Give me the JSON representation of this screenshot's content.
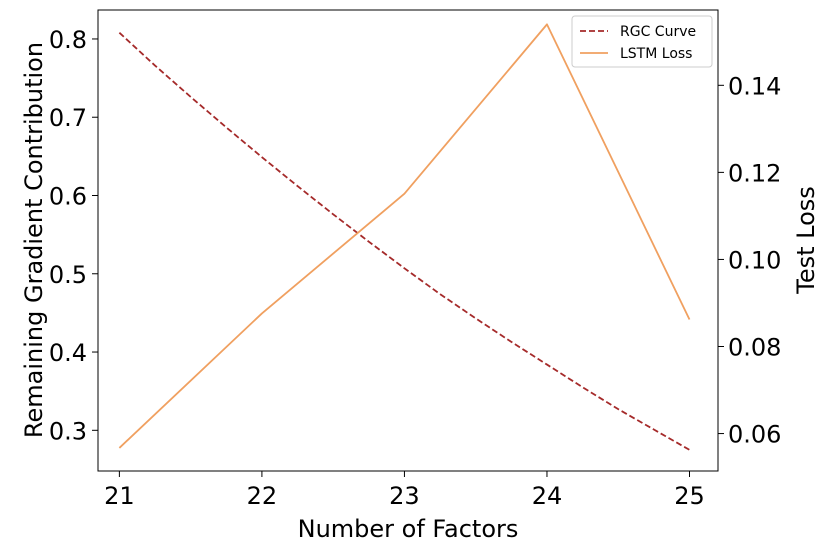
{
  "chart_data": {
    "type": "line",
    "x": [
      21,
      22,
      23,
      24,
      25
    ],
    "xlabel": "Number of Factors",
    "ylabel_left": "Remaining Gradient Contribution",
    "ylabel_right": "Test Loss",
    "xlim": [
      20.85,
      25.2
    ],
    "ylim_left": [
      0.248,
      0.837
    ],
    "ylim_right": [
      0.0514,
      0.1573
    ],
    "xticks": [
      21,
      22,
      23,
      24,
      25
    ],
    "xtick_labels": [
      "21",
      "22",
      "23",
      "24",
      "25"
    ],
    "yticks_left": [
      0.3,
      0.4,
      0.5,
      0.6,
      0.7,
      0.8
    ],
    "ytick_labels_left": [
      "0.3",
      "0.4",
      "0.5",
      "0.6",
      "0.7",
      "0.8"
    ],
    "yticks_right": [
      0.06,
      0.08,
      0.1,
      0.12,
      0.14
    ],
    "ytick_labels_right": [
      "0.06",
      "0.08",
      "0.10",
      "0.12",
      "0.14"
    ],
    "grid": false,
    "legend_position": "top-right",
    "series": [
      {
        "name": "RGC Curve",
        "axis": "left",
        "style": "dashed",
        "color": "#a52a2a",
        "x": [
          21,
          21.25,
          21.5,
          21.75,
          22,
          22.25,
          22.5,
          22.75,
          23,
          23.25,
          23.5,
          23.75,
          24,
          24.25,
          24.5,
          24.75,
          25
        ],
        "values": [
          0.808,
          0.766,
          0.726,
          0.687,
          0.649,
          0.612,
          0.576,
          0.541,
          0.507,
          0.474,
          0.443,
          0.413,
          0.384,
          0.355,
          0.327,
          0.301,
          0.275
        ]
      },
      {
        "name": "LSTM Loss",
        "axis": "right",
        "style": "solid",
        "color": "#f0a060",
        "x": [
          21,
          22,
          23,
          24,
          25
        ],
        "values": [
          0.0567,
          0.0876,
          0.1151,
          0.154,
          0.0862
        ]
      }
    ]
  }
}
